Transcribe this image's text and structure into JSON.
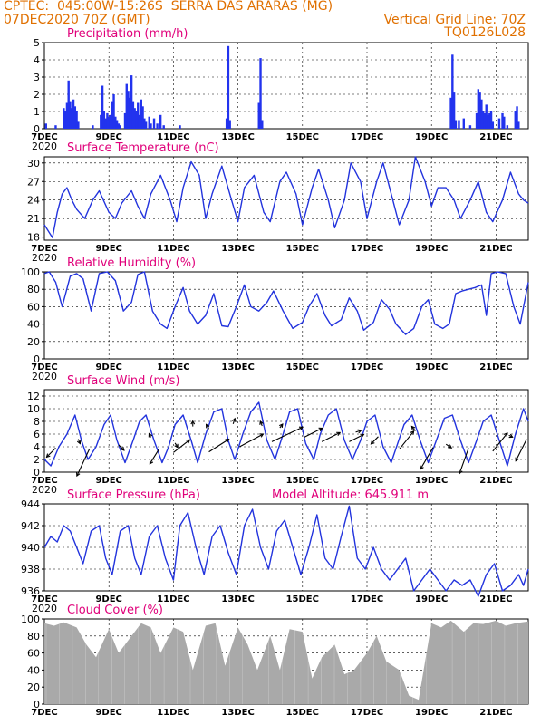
{
  "header": {
    "left_line1": "CPTEC:  045:00W-15:26S  SERRA DAS ARARAS (MG)",
    "left_line2": "07DEC2020 70Z (GMT)",
    "right_line2": "Vertical Grid Line: 70Z",
    "right_line3": "TQ0126L028"
  },
  "colors": {
    "header": "#e07000",
    "title": "#e0007a",
    "line": "#2233dd",
    "bar": "#2233ee",
    "cloud": "#a9a9a9"
  },
  "x_axis": {
    "ticks": [
      "7DEC",
      "9DEC",
      "11DEC",
      "13DEC",
      "15DEC",
      "17DEC",
      "19DEC",
      "21DEC"
    ],
    "sub_label": "2020"
  },
  "chart_data": [
    {
      "type": "bar",
      "title": "Precipitation (mm/h)",
      "x_range": [
        0,
        15
      ],
      "ylim": [
        0,
        5
      ],
      "yticks": [
        0,
        1,
        2,
        3,
        4,
        5
      ],
      "x": [
        0.05,
        0.35,
        0.6,
        0.65,
        0.7,
        0.75,
        0.8,
        0.85,
        0.9,
        0.95,
        1.0,
        1.05,
        1.5,
        1.75,
        1.8,
        1.85,
        1.9,
        1.95,
        2.0,
        2.05,
        2.1,
        2.15,
        2.2,
        2.25,
        2.3,
        2.35,
        2.5,
        2.55,
        2.6,
        2.65,
        2.7,
        2.75,
        2.8,
        2.85,
        2.9,
        2.95,
        3.0,
        3.05,
        3.1,
        3.15,
        3.25,
        3.3,
        3.4,
        3.5,
        3.6,
        3.7,
        4.2,
        5.65,
        5.7,
        5.75,
        6.65,
        6.7,
        6.75,
        12.6,
        12.65,
        12.7,
        12.75,
        12.85,
        13.0,
        13.2,
        13.4,
        13.45,
        13.5,
        13.55,
        13.6,
        13.65,
        13.7,
        13.75,
        13.8,
        13.85,
        13.9,
        14.1,
        14.2,
        14.25,
        14.35,
        14.6,
        14.65,
        14.7
      ],
      "values": [
        0.3,
        0.2,
        1.2,
        1.0,
        1.5,
        2.8,
        1.6,
        1.2,
        1.7,
        1.3,
        1.0,
        0.4,
        0.2,
        0.8,
        2.5,
        1.0,
        0.6,
        0.9,
        0.7,
        0.8,
        1.6,
        2.0,
        0.7,
        0.5,
        0.3,
        0.2,
        0.9,
        2.6,
        2.2,
        1.8,
        3.1,
        1.6,
        1.2,
        1.0,
        1.5,
        0.8,
        1.7,
        1.3,
        0.6,
        0.4,
        0.7,
        0.3,
        0.6,
        0.3,
        0.8,
        0.2,
        0.2,
        0.6,
        4.8,
        0.5,
        1.5,
        4.1,
        0.5,
        1.8,
        4.3,
        2.1,
        0.5,
        0.5,
        0.6,
        0.2,
        0.9,
        2.3,
        2.1,
        1.7,
        1.0,
        0.9,
        1.4,
        0.8,
        0.9,
        1.0,
        0.4,
        0.6,
        0.9,
        0.7,
        0.2,
        1.0,
        1.3,
        0.4
      ]
    },
    {
      "type": "line",
      "title": "Surface Temperature (nC)",
      "x_range": [
        0,
        15
      ],
      "ylim": [
        17.5,
        31
      ],
      "yticks": [
        18,
        21,
        24,
        27,
        30
      ],
      "x": [
        0,
        0.25,
        0.4,
        0.55,
        0.7,
        0.85,
        1.0,
        1.25,
        1.5,
        1.7,
        2.0,
        2.2,
        2.4,
        2.7,
        2.9,
        3.1,
        3.3,
        3.6,
        3.9,
        4.1,
        4.3,
        4.55,
        4.8,
        5.0,
        5.2,
        5.5,
        5.8,
        6.0,
        6.2,
        6.5,
        6.8,
        7.0,
        7.3,
        7.5,
        7.8,
        8.0,
        8.3,
        8.5,
        8.8,
        9.0,
        9.3,
        9.5,
        9.8,
        10.0,
        10.3,
        10.5,
        10.8,
        11.0,
        11.3,
        11.5,
        11.8,
        12.0,
        12.2,
        12.45,
        12.7,
        12.9,
        13.2,
        13.45,
        13.7,
        13.9,
        14.2,
        14.45,
        14.7,
        14.85,
        15.0
      ],
      "values": [
        20,
        17.9,
        22,
        25,
        26,
        24,
        22.5,
        21,
        24,
        25.5,
        22,
        21,
        23.5,
        25.5,
        23,
        21,
        25,
        28,
        24,
        20.5,
        26,
        30.2,
        28,
        21,
        25,
        29.5,
        24,
        20.5,
        26,
        28,
        22,
        20.5,
        27,
        28.5,
        25,
        20,
        26,
        29,
        24,
        19.5,
        24,
        30,
        27,
        21,
        27,
        30,
        24,
        20,
        24,
        31,
        27,
        23,
        26,
        26,
        24,
        21,
        24,
        27,
        22,
        20.5,
        24,
        28.5,
        25,
        24,
        23.5
      ]
    },
    {
      "type": "line",
      "title": "Relative Humidity (%)",
      "x_range": [
        0,
        15
      ],
      "ylim": [
        0,
        100
      ],
      "yticks": [
        0,
        20,
        40,
        60,
        80,
        100
      ],
      "x": [
        0,
        0.15,
        0.35,
        0.55,
        0.8,
        1.0,
        1.2,
        1.45,
        1.7,
        1.95,
        2.2,
        2.45,
        2.7,
        2.9,
        3.1,
        3.35,
        3.6,
        3.8,
        4.05,
        4.3,
        4.5,
        4.75,
        5.0,
        5.25,
        5.5,
        5.7,
        5.95,
        6.2,
        6.4,
        6.65,
        6.9,
        7.1,
        7.4,
        7.7,
        8.0,
        8.2,
        8.45,
        8.7,
        8.9,
        9.2,
        9.45,
        9.7,
        9.9,
        10.2,
        10.45,
        10.7,
        10.9,
        11.2,
        11.45,
        11.7,
        11.9,
        12.1,
        12.35,
        12.55,
        12.75,
        12.95,
        13.15,
        13.35,
        13.55,
        13.7,
        13.85,
        14.05,
        14.3,
        14.55,
        14.75,
        15.0
      ],
      "values": [
        98,
        100,
        88,
        60,
        95,
        98,
        92,
        55,
        98,
        100,
        90,
        55,
        65,
        97,
        100,
        55,
        40,
        35,
        60,
        82,
        55,
        40,
        50,
        75,
        38,
        37,
        60,
        85,
        60,
        55,
        65,
        78,
        55,
        35,
        42,
        60,
        75,
        50,
        38,
        45,
        70,
        55,
        33,
        42,
        68,
        57,
        40,
        28,
        35,
        60,
        68,
        40,
        35,
        40,
        75,
        78,
        80,
        82,
        85,
        50,
        98,
        100,
        98,
        60,
        40,
        88
      ]
    },
    {
      "type": "line",
      "title": "Surface Wind (m/s)",
      "x_range": [
        0,
        15
      ],
      "ylim": [
        0,
        13
      ],
      "yticks": [
        0,
        2,
        4,
        6,
        8,
        10,
        12
      ],
      "x": [
        0,
        0.2,
        0.45,
        0.7,
        0.95,
        1.15,
        1.35,
        1.6,
        1.85,
        2.05,
        2.25,
        2.5,
        2.75,
        2.95,
        3.15,
        3.4,
        3.65,
        3.85,
        4.05,
        4.3,
        4.55,
        4.75,
        5.0,
        5.25,
        5.5,
        5.7,
        5.9,
        6.15,
        6.4,
        6.65,
        6.9,
        7.15,
        7.4,
        7.6,
        7.85,
        8.1,
        8.35,
        8.55,
        8.8,
        9.05,
        9.3,
        9.55,
        9.8,
        10.0,
        10.25,
        10.5,
        10.75,
        10.95,
        11.15,
        11.4,
        11.65,
        11.9,
        12.15,
        12.4,
        12.65,
        12.9,
        13.15,
        13.4,
        13.6,
        13.85,
        14.1,
        14.35,
        14.6,
        14.85,
        15.0
      ],
      "values": [
        2,
        1,
        4,
        6,
        9,
        5,
        2,
        4,
        7.5,
        9,
        5,
        1.5,
        5,
        8,
        9,
        5,
        1.5,
        4,
        7.5,
        9,
        5,
        1.5,
        6,
        9.5,
        10,
        5,
        2,
        6,
        9.5,
        11,
        5,
        2,
        6,
        9.5,
        10,
        4.5,
        2,
        6,
        9,
        10,
        5,
        2,
        5,
        8,
        9,
        4,
        1.5,
        4.5,
        7.5,
        9,
        5,
        1.5,
        5,
        8.5,
        9,
        5,
        1.5,
        5,
        8,
        9,
        5,
        1,
        6,
        10,
        8
      ]
    },
    {
      "type": "line",
      "title": "Surface Pressure (hPa)",
      "annotation": "Model Altitude: 645.911  m",
      "x_range": [
        0,
        15
      ],
      "ylim": [
        936,
        944
      ],
      "yticks": [
        936,
        938,
        940,
        942,
        944
      ],
      "x": [
        0,
        0.2,
        0.4,
        0.6,
        0.8,
        1.0,
        1.2,
        1.45,
        1.7,
        1.9,
        2.1,
        2.35,
        2.6,
        2.8,
        3.0,
        3.25,
        3.5,
        3.75,
        4.0,
        4.2,
        4.45,
        4.7,
        4.95,
        5.2,
        5.45,
        5.7,
        5.95,
        6.2,
        6.45,
        6.7,
        6.95,
        7.2,
        7.45,
        7.7,
        7.95,
        8.2,
        8.45,
        8.7,
        8.95,
        9.2,
        9.45,
        9.7,
        9.95,
        10.2,
        10.45,
        10.7,
        10.95,
        11.2,
        11.45,
        11.7,
        11.95,
        12.2,
        12.45,
        12.7,
        12.95,
        13.2,
        13.45,
        13.7,
        13.95,
        14.2,
        14.45,
        14.7,
        14.85,
        15.0
      ],
      "values": [
        940,
        941,
        940.5,
        942,
        941.5,
        940,
        938.5,
        941.5,
        942,
        939,
        937.5,
        941.5,
        942,
        939,
        937.5,
        941,
        942,
        939,
        937,
        942,
        943.2,
        940,
        937.5,
        941,
        942,
        939.5,
        937.5,
        942,
        943.5,
        940,
        938,
        941.5,
        942.5,
        940,
        937.5,
        940,
        943,
        939,
        938,
        941,
        943.8,
        939,
        938,
        940,
        938,
        937,
        938,
        939,
        936,
        937,
        938,
        937,
        936,
        937,
        936.5,
        937,
        935.5,
        937.5,
        938.5,
        936,
        936.5,
        937.5,
        936.5,
        938
      ]
    },
    {
      "type": "area",
      "title": "Cloud Cover (%)",
      "x_range": [
        0,
        15
      ],
      "ylim": [
        0,
        100
      ],
      "yticks": [
        0,
        20,
        40,
        60,
        80,
        100
      ],
      "x": [
        0,
        0.3,
        0.6,
        1.0,
        1.3,
        1.6,
        2.0,
        2.3,
        2.6,
        3.0,
        3.3,
        3.6,
        4.0,
        4.3,
        4.6,
        5.0,
        5.3,
        5.6,
        6.0,
        6.3,
        6.6,
        7.0,
        7.3,
        7.6,
        8.0,
        8.3,
        8.6,
        9.0,
        9.3,
        9.6,
        10.0,
        10.3,
        10.6,
        11.0,
        11.3,
        11.6,
        12.0,
        12.3,
        12.6,
        13.0,
        13.3,
        13.6,
        14.0,
        14.3,
        14.6,
        15.0
      ],
      "values": [
        95,
        92,
        96,
        90,
        70,
        55,
        88,
        60,
        75,
        95,
        90,
        60,
        90,
        85,
        40,
        92,
        95,
        45,
        90,
        70,
        40,
        80,
        40,
        88,
        85,
        30,
        55,
        70,
        35,
        40,
        60,
        80,
        50,
        40,
        10,
        5,
        95,
        90,
        98,
        85,
        95,
        94,
        98,
        92,
        95,
        97
      ]
    }
  ]
}
